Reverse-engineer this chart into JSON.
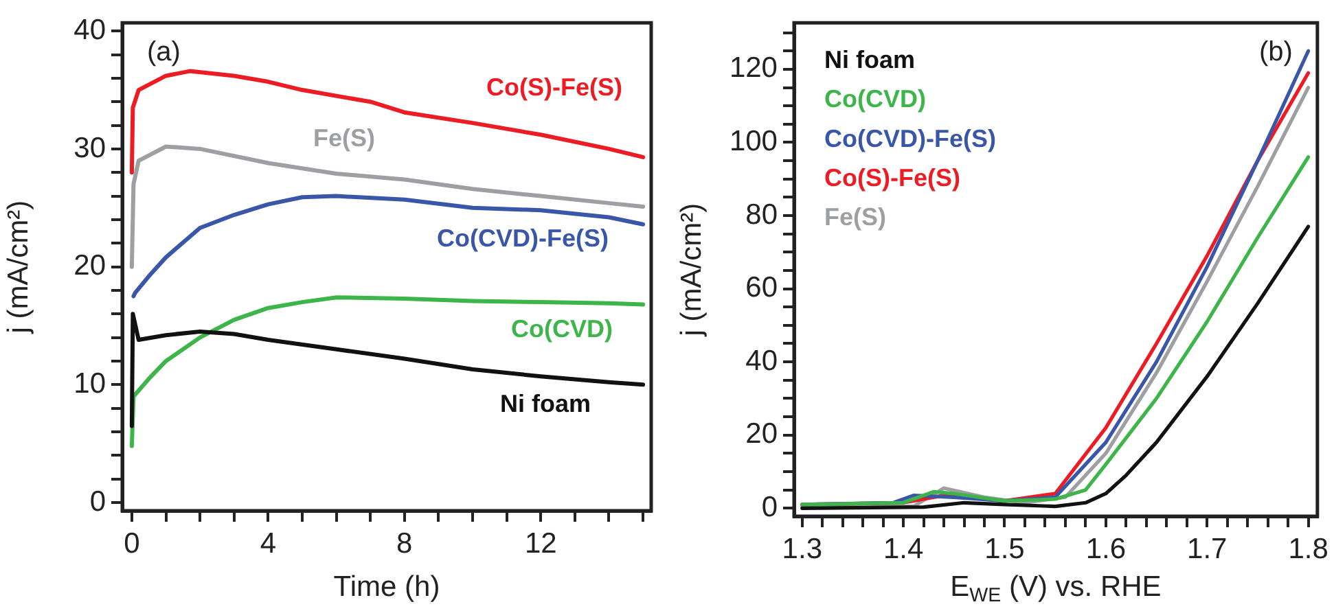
{
  "chart_data": [
    {
      "type": "line",
      "xlabel": "Time (h)",
      "ylabel": "j (mA/cm²)",
      "annotations": [
        "(a)"
      ],
      "legend": false,
      "grid": false,
      "marker": "none",
      "line_style": "solid",
      "xlim": [
        -0.28,
        15.24
      ],
      "ylim": [
        -0.7,
        40.7
      ],
      "xticks": [
        0,
        {
          "value": 1,
          "label": null
        },
        {
          "value": 2,
          "label": null
        },
        {
          "value": 3,
          "label": null
        },
        4,
        {
          "value": 5,
          "label": null
        },
        {
          "value": 6,
          "label": null
        },
        {
          "value": 7,
          "label": null
        },
        8,
        {
          "value": 9,
          "label": null
        },
        {
          "value": 10,
          "label": null
        },
        {
          "value": 11,
          "label": null
        },
        12,
        {
          "value": 13,
          "label": null
        },
        {
          "value": 14,
          "label": null
        },
        {
          "value": 15,
          "label": null
        }
      ],
      "yticks": [
        0,
        {
          "value": 2,
          "label": null
        },
        {
          "value": 4,
          "label": null
        },
        {
          "value": 6,
          "label": null
        },
        {
          "value": 8,
          "label": null
        },
        10,
        {
          "value": 12,
          "label": null
        },
        {
          "value": 14,
          "label": null
        },
        {
          "value": 16,
          "label": null
        },
        {
          "value": 18,
          "label": null
        },
        20,
        {
          "value": 22,
          "label": null
        },
        {
          "value": 24,
          "label": null
        },
        {
          "value": 26,
          "label": null
        },
        {
          "value": 28,
          "label": null
        },
        30,
        {
          "value": 32,
          "label": null
        },
        {
          "value": 34,
          "label": null
        },
        {
          "value": 36,
          "label": null
        },
        {
          "value": 38,
          "label": null
        },
        40
      ],
      "series": [
        {
          "name": "Ni foam",
          "color": "#111111",
          "x": [
            0,
            0.03,
            0.2,
            1,
            2,
            3,
            4,
            6,
            8,
            10,
            12,
            14,
            15
          ],
          "values": [
            6.5,
            16,
            13.8,
            14.2,
            14.5,
            14.3,
            13.8,
            13,
            12.2,
            11.3,
            10.7,
            10.2,
            10
          ]
        },
        {
          "name": "Co(CVD)",
          "color": "#3db54a",
          "x": [
            0,
            0.05,
            0.5,
            1,
            2,
            3,
            4,
            5,
            6,
            8,
            10,
            12,
            14,
            15
          ],
          "values": [
            4.8,
            9,
            10.5,
            12,
            14,
            15.5,
            16.5,
            17,
            17.4,
            17.3,
            17.1,
            17,
            16.9,
            16.8
          ]
        },
        {
          "name": "Co(CVD)-Fe(S)",
          "color": "#3a56a8",
          "x": [
            0.05,
            0.1,
            0.5,
            1,
            2,
            3,
            4,
            5,
            6,
            8,
            10,
            12,
            14,
            15
          ],
          "values": [
            17.5,
            17.8,
            19.2,
            20.8,
            23.3,
            24.4,
            25.3,
            25.9,
            26,
            25.7,
            25,
            24.8,
            24.2,
            23.6
          ]
        },
        {
          "name": "Co(S)-Fe(S)",
          "color": "#ec1c24",
          "x": [
            0,
            0.03,
            0.2,
            1,
            1.7,
            3,
            4,
            5,
            7,
            8,
            10,
            12,
            14,
            15
          ],
          "values": [
            28,
            33.5,
            35,
            36.2,
            36.6,
            36.2,
            35.7,
            35,
            34,
            33.1,
            32.2,
            31.2,
            30,
            29.3
          ]
        },
        {
          "name": "Fe(S)",
          "color": "#9d9fa2",
          "x": [
            0,
            0.05,
            0.2,
            1,
            2,
            4,
            6,
            8,
            10,
            12,
            14,
            15
          ],
          "values": [
            20,
            27,
            29,
            30.2,
            30,
            28.8,
            27.9,
            27.4,
            26.6,
            26,
            25.4,
            25.1
          ]
        }
      ]
    },
    {
      "type": "line",
      "xlabel": "E$_{WE}$ (V) vs. RHE",
      "ylabel": "j (mA/cm²)",
      "annotations": [
        "(b)"
      ],
      "legend": "top left",
      "grid": false,
      "marker": "none",
      "line_style": "solid",
      "xlim": [
        1.292,
        1.809
      ],
      "ylim": [
        -2.2,
        132.7
      ],
      "xticks": [
        1.3,
        {
          "value": 1.32,
          "label": null
        },
        {
          "value": 1.34,
          "label": null
        },
        {
          "value": 1.36,
          "label": null
        },
        {
          "value": 1.38,
          "label": null
        },
        1.4,
        {
          "value": 1.42,
          "label": null
        },
        {
          "value": 1.44,
          "label": null
        },
        {
          "value": 1.46,
          "label": null
        },
        {
          "value": 1.48,
          "label": null
        },
        1.5,
        {
          "value": 1.52,
          "label": null
        },
        {
          "value": 1.54,
          "label": null
        },
        {
          "value": 1.56,
          "label": null
        },
        {
          "value": 1.58,
          "label": null
        },
        1.6,
        {
          "value": 1.62,
          "label": null
        },
        {
          "value": 1.64,
          "label": null
        },
        {
          "value": 1.66,
          "label": null
        },
        {
          "value": 1.68,
          "label": null
        },
        1.7,
        {
          "value": 1.72,
          "label": null
        },
        {
          "value": 1.74,
          "label": null
        },
        {
          "value": 1.76,
          "label": null
        },
        {
          "value": 1.78,
          "label": null
        },
        1.8
      ],
      "yticks": [
        0,
        {
          "value": 5,
          "label": null
        },
        {
          "value": 10,
          "label": null
        },
        {
          "value": 15,
          "label": null
        },
        20,
        {
          "value": 25,
          "label": null
        },
        {
          "value": 30,
          "label": null
        },
        {
          "value": 35,
          "label": null
        },
        40,
        {
          "value": 45,
          "label": null
        },
        {
          "value": 50,
          "label": null
        },
        {
          "value": 55,
          "label": null
        },
        60,
        {
          "value": 65,
          "label": null
        },
        {
          "value": 70,
          "label": null
        },
        {
          "value": 75,
          "label": null
        },
        80,
        {
          "value": 85,
          "label": null
        },
        {
          "value": 90,
          "label": null
        },
        {
          "value": 95,
          "label": null
        },
        100,
        {
          "value": 105,
          "label": null
        },
        {
          "value": 110,
          "label": null
        },
        {
          "value": 115,
          "label": null
        },
        120,
        {
          "value": 125,
          "label": null
        },
        {
          "value": 130,
          "label": null
        }
      ],
      "series": [
        {
          "name": "Ni foam",
          "color": "#111111",
          "x": [
            1.3,
            1.42,
            1.46,
            1.5,
            1.55,
            1.58,
            1.6,
            1.62,
            1.65,
            1.7,
            1.75,
            1.8
          ],
          "values": [
            0,
            0.3,
            1.5,
            1,
            0.5,
            1.5,
            4,
            9,
            18,
            36,
            56,
            77
          ]
        },
        {
          "name": "Co(CVD)",
          "color": "#3db54a",
          "x": [
            1.3,
            1.4,
            1.43,
            1.45,
            1.5,
            1.55,
            1.58,
            1.6,
            1.65,
            1.7,
            1.75,
            1.8
          ],
          "values": [
            1,
            1.5,
            4.5,
            4,
            2,
            2.5,
            5,
            12,
            30,
            51,
            74,
            96
          ]
        },
        {
          "name": "Co(CVD)-Fe(S)",
          "color": "#3a56a8",
          "x": [
            1.3,
            1.39,
            1.41,
            1.45,
            1.5,
            1.55,
            1.6,
            1.65,
            1.7,
            1.75,
            1.8
          ],
          "values": [
            1,
            1.5,
            3.5,
            3,
            2,
            3,
            18,
            40,
            66,
            95,
            125
          ]
        },
        {
          "name": "Co(S)-Fe(S)",
          "color": "#ec1c24",
          "x": [
            1.3,
            1.4,
            1.44,
            1.5,
            1.55,
            1.6,
            1.65,
            1.7,
            1.75,
            1.8
          ],
          "values": [
            1,
            1.5,
            3.5,
            2,
            4,
            22,
            45,
            69,
            95,
            119
          ]
        },
        {
          "name": "Fe(S)",
          "color": "#9d9fa2",
          "x": [
            1.3,
            1.41,
            1.44,
            1.48,
            1.52,
            1.56,
            1.6,
            1.65,
            1.7,
            1.75,
            1.8
          ],
          "values": [
            0.5,
            0.5,
            5.5,
            3,
            1.5,
            3,
            15,
            37,
            62,
            88,
            115
          ]
        }
      ]
    }
  ]
}
